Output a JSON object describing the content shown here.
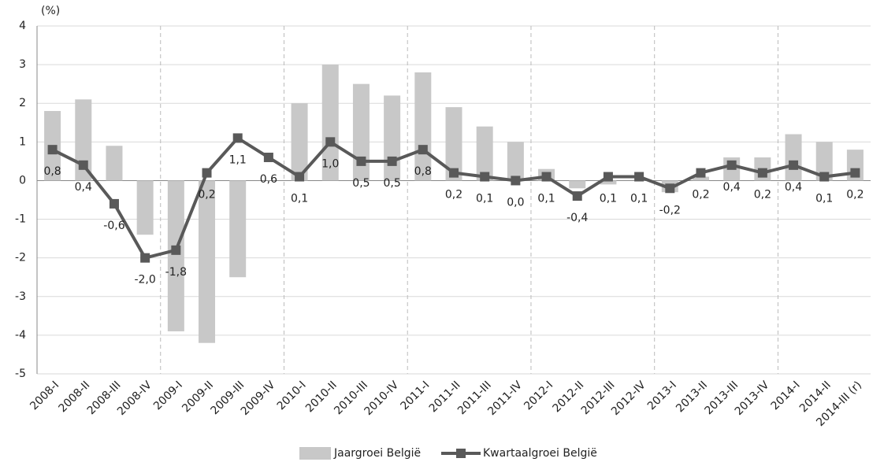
{
  "chart_data": {
    "type": "bar_line",
    "y_unit_label": "(%)",
    "categories": [
      "2008-I",
      "2008-II",
      "2008-III",
      "2008-IV",
      "2009-I",
      "2009-II",
      "2009-III",
      "2009-IV",
      "2010-I",
      "2010-II",
      "2010-III",
      "2010-IV",
      "2011-I",
      "2011-II",
      "2011-III",
      "2011-IV",
      "2012-I",
      "2012-II",
      "2012-III",
      "2012-IV",
      "2013-I",
      "2013-II",
      "2013-III",
      "2013-IV",
      "2014-I",
      "2014-II",
      "2014-III (r)"
    ],
    "series": [
      {
        "name": "Jaargroei België",
        "type": "bar",
        "color": "#c8c8c8",
        "values": [
          1.8,
          2.1,
          0.9,
          -1.4,
          -3.9,
          -4.2,
          -2.5,
          0,
          2.0,
          3.0,
          2.5,
          2.2,
          2.8,
          1.9,
          1.4,
          1.0,
          0.3,
          -0.2,
          -0.1,
          0,
          -0.3,
          0.1,
          0.6,
          0.6,
          1.2,
          1.0,
          0.8
        ]
      },
      {
        "name": "Kwartaalgroei België",
        "type": "line",
        "color": "#595959",
        "values": [
          0.8,
          0.4,
          -0.6,
          -2.0,
          -1.8,
          0.2,
          1.1,
          0.6,
          0.1,
          1.0,
          0.5,
          0.5,
          0.8,
          0.2,
          0.1,
          0.0,
          0.1,
          -0.4,
          0.1,
          0.1,
          -0.2,
          0.2,
          0.4,
          0.2,
          0.4,
          0.1,
          0.2
        ],
        "value_labels": [
          "0,8",
          "0,4",
          "-0,6",
          "-2,0",
          "-1,8",
          "0,2",
          "1,1",
          "0,6",
          "0,1",
          "1,0",
          "0,5",
          "0,5",
          "0,8",
          "0,2",
          "0,1",
          "0,0",
          "0,1",
          "-0,4",
          "0,1",
          "0,1",
          "-0,2",
          "0,2",
          "0,4",
          "0,2",
          "0,4",
          "0,1",
          "0,2"
        ]
      }
    ],
    "ylim": [
      -5,
      4
    ],
    "yticks": [
      -5,
      -4,
      -3,
      -2,
      -1,
      0,
      1,
      2,
      3,
      4
    ],
    "grid": true,
    "legend": "bottom"
  }
}
